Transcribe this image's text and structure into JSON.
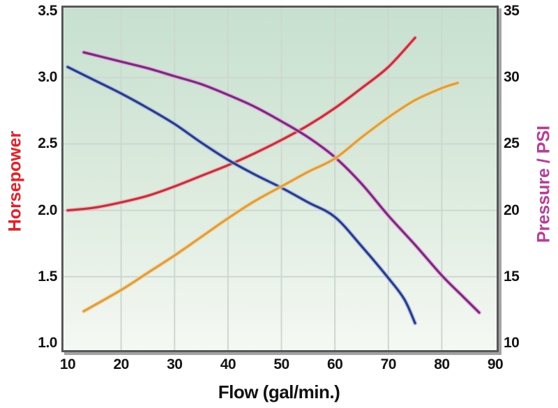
{
  "chart_data": {
    "type": "line",
    "description": "Pump performance curves: horsepower and pressure versus flow",
    "xlabel": "Flow (gal/min.)",
    "x_axis": {
      "min": 10,
      "max": 90,
      "ticks": [
        "10",
        "20",
        "30",
        "40",
        "50",
        "60",
        "70",
        "80",
        "90"
      ]
    },
    "left_axis": {
      "label": "Horsepower",
      "color": "#ed1c24",
      "min": 1.0,
      "max": 3.5,
      "ticks": [
        "3.5",
        "3.0",
        "2.5",
        "2.0",
        "1.5",
        "1.0"
      ]
    },
    "right_axis": {
      "label": "Pressure / PSI",
      "color": "#bd3a9c",
      "min": 10,
      "max": 35,
      "ticks": [
        "35",
        "30",
        "25",
        "20",
        "15",
        "10"
      ]
    },
    "grid": "on",
    "legend": "none",
    "series": [
      {
        "name": "horsepower-curve",
        "axis": "left",
        "color": "#c5303c",
        "halo": "#f2aeb2",
        "points": [
          [
            10,
            2.0
          ],
          [
            15,
            2.02
          ],
          [
            20,
            2.06
          ],
          [
            25,
            2.11
          ],
          [
            30,
            2.18
          ],
          [
            35,
            2.26
          ],
          [
            40,
            2.34
          ],
          [
            45,
            2.43
          ],
          [
            50,
            2.53
          ],
          [
            55,
            2.64
          ],
          [
            60,
            2.77
          ],
          [
            65,
            2.92
          ],
          [
            70,
            3.08
          ],
          [
            75,
            3.3
          ]
        ]
      },
      {
        "name": "efficiency-declining-curve",
        "axis": "left",
        "color": "#2a3c8c",
        "halo": "#a9b8e0",
        "points": [
          [
            10,
            3.08
          ],
          [
            15,
            2.98
          ],
          [
            20,
            2.88
          ],
          [
            25,
            2.77
          ],
          [
            30,
            2.65
          ],
          [
            35,
            2.51
          ],
          [
            40,
            2.38
          ],
          [
            45,
            2.27
          ],
          [
            50,
            2.17
          ],
          [
            55,
            2.06
          ],
          [
            60,
            1.95
          ],
          [
            65,
            1.73
          ],
          [
            70,
            1.49
          ],
          [
            73,
            1.33
          ],
          [
            75,
            1.15
          ]
        ]
      },
      {
        "name": "pressure-curve",
        "axis": "right",
        "color": "#7e2a80",
        "halo": "#e2a3da",
        "points": [
          [
            13,
            31.9
          ],
          [
            20,
            31.2
          ],
          [
            25,
            30.7
          ],
          [
            30,
            30.1
          ],
          [
            35,
            29.5
          ],
          [
            40,
            28.7
          ],
          [
            45,
            27.8
          ],
          [
            50,
            26.7
          ],
          [
            55,
            25.5
          ],
          [
            60,
            24.0
          ],
          [
            65,
            22.0
          ],
          [
            70,
            19.6
          ],
          [
            75,
            17.4
          ],
          [
            80,
            15.1
          ],
          [
            84,
            13.5
          ],
          [
            87,
            12.3
          ]
        ]
      },
      {
        "name": "rising-pressure-curve",
        "axis": "right",
        "color": "#df9f3b",
        "halo": "#f5d6a2",
        "points": [
          [
            13,
            12.4
          ],
          [
            20,
            14.0
          ],
          [
            25,
            15.3
          ],
          [
            30,
            16.6
          ],
          [
            35,
            18.0
          ],
          [
            40,
            19.4
          ],
          [
            45,
            20.7
          ],
          [
            50,
            21.8
          ],
          [
            55,
            22.9
          ],
          [
            60,
            23.9
          ],
          [
            65,
            25.5
          ],
          [
            70,
            27.0
          ],
          [
            75,
            28.3
          ],
          [
            80,
            29.2
          ],
          [
            83,
            29.6
          ]
        ]
      }
    ]
  }
}
